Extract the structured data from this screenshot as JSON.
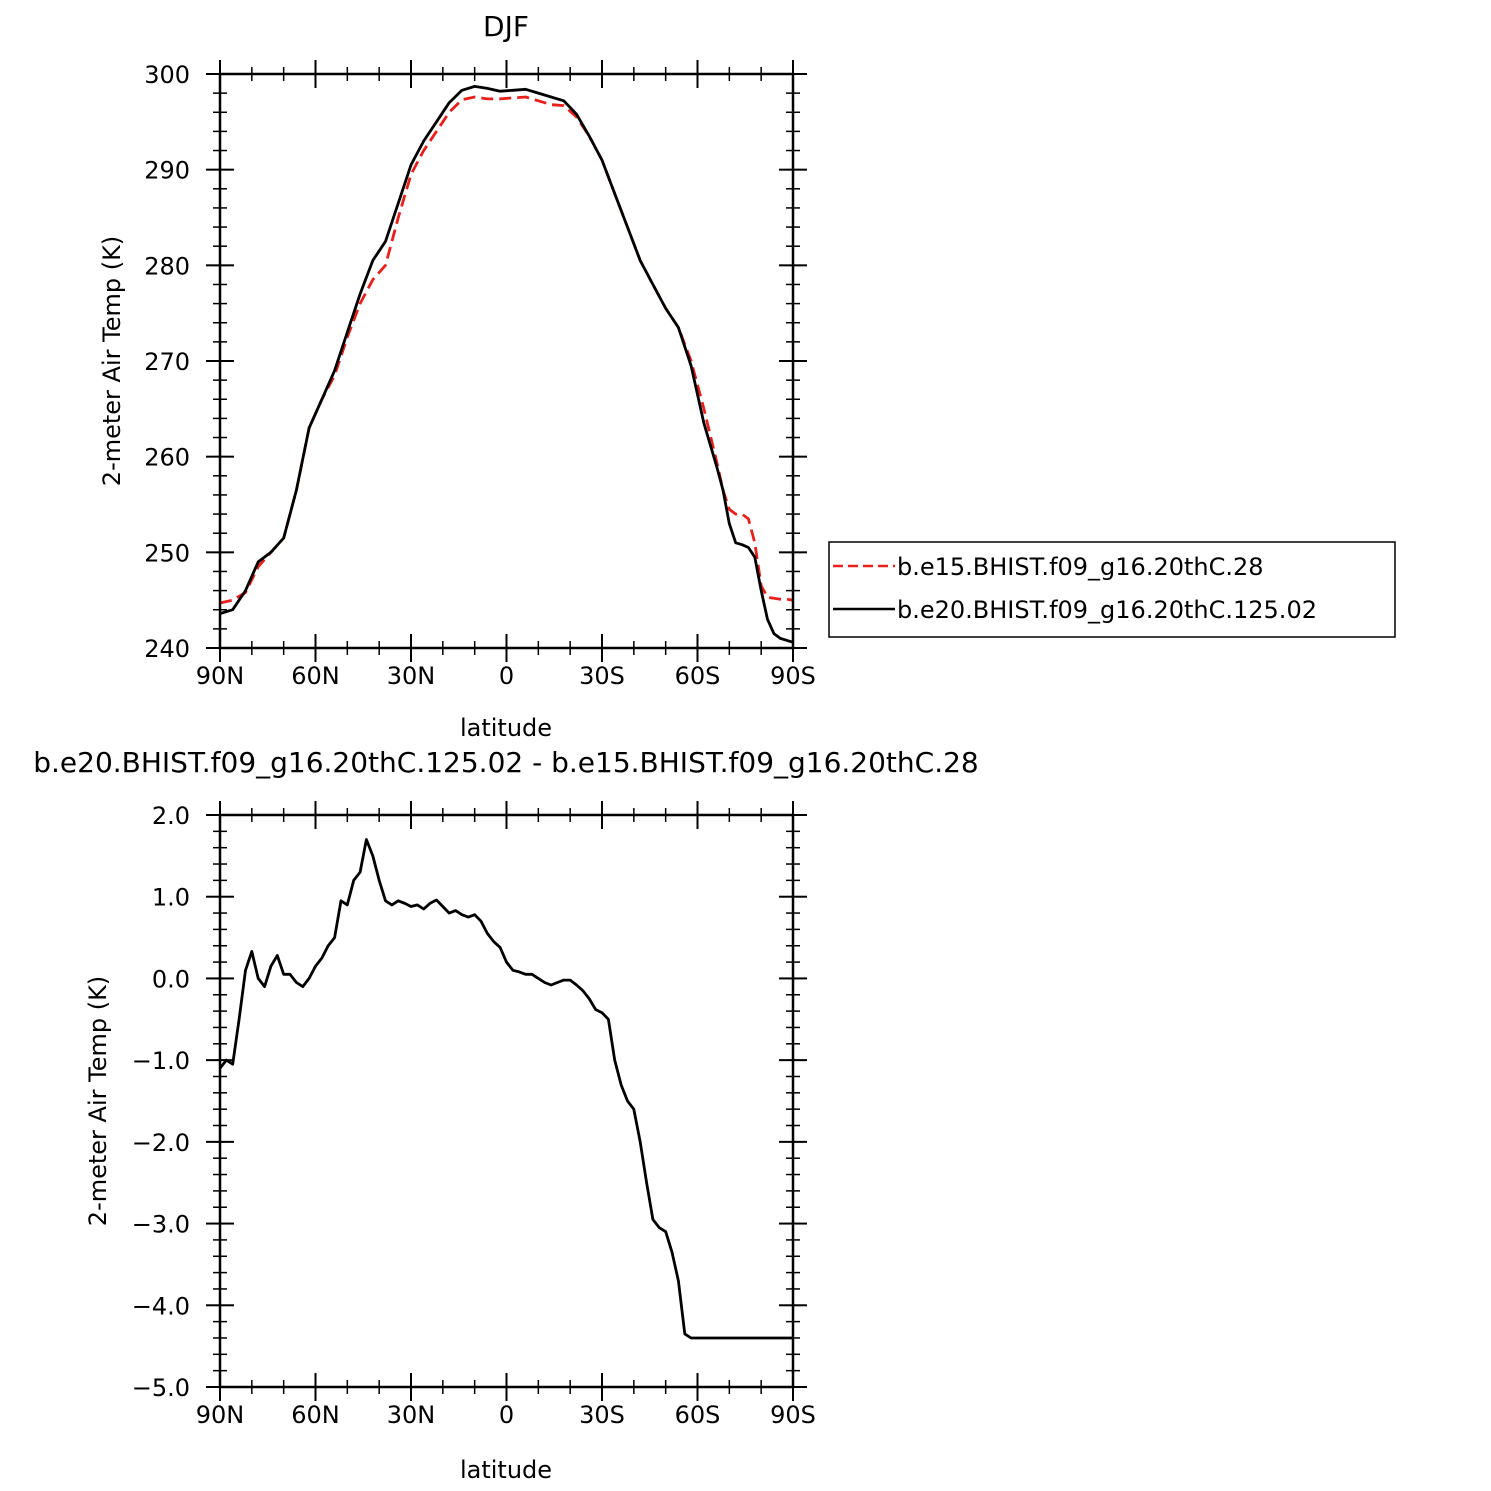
{
  "chart_data": [
    {
      "type": "line",
      "title": "DJF",
      "xlabel": "latitude",
      "ylabel": "2-meter Air Temp (K)",
      "xlim": [
        90,
        -90
      ],
      "ylim": [
        240,
        300
      ],
      "x_ticks": [
        {
          "value": 90,
          "label": "90N"
        },
        {
          "value": 60,
          "label": "60N"
        },
        {
          "value": 30,
          "label": "30N"
        },
        {
          "value": 0,
          "label": "0"
        },
        {
          "value": -30,
          "label": "30S"
        },
        {
          "value": -60,
          "label": "60S"
        },
        {
          "value": -90,
          "label": "90S"
        }
      ],
      "y_ticks": [
        {
          "value": 240,
          "label": "240"
        },
        {
          "value": 250,
          "label": "250"
        },
        {
          "value": 260,
          "label": "260"
        },
        {
          "value": 270,
          "label": "270"
        },
        {
          "value": 280,
          "label": "280"
        },
        {
          "value": 290,
          "label": "290"
        },
        {
          "value": 300,
          "label": "300"
        }
      ],
      "legend_position": "right",
      "series": [
        {
          "name": "b.e15.BHIST.f09_g16.20thC.28",
          "color": "#e8201c",
          "dash": "dashed",
          "x": [
            90,
            86,
            82,
            78,
            74,
            70,
            66,
            62,
            58,
            54,
            50,
            46,
            42,
            38,
            34,
            30,
            26,
            22,
            18,
            14,
            10,
            6,
            2,
            -2,
            -6,
            -10,
            -14,
            -18,
            -22,
            -26,
            -30,
            -34,
            -38,
            -42,
            -46,
            -50,
            -54,
            -58,
            -62,
            -66,
            -68,
            -70,
            -72,
            -74,
            -76,
            -78,
            -80,
            -82,
            -84,
            -86,
            -88,
            -90
          ],
          "y": [
            244.7,
            245.0,
            245.8,
            248.5,
            250.0,
            251.5,
            256.5,
            263.0,
            266.0,
            268.5,
            272.5,
            276.0,
            278.5,
            280.0,
            285.0,
            289.5,
            292.0,
            294.0,
            296.0,
            297.3,
            297.6,
            297.4,
            297.4,
            297.5,
            297.6,
            297.2,
            296.8,
            296.7,
            295.5,
            293.5,
            291.0,
            287.5,
            284.0,
            280.5,
            278.0,
            275.5,
            273.5,
            270.0,
            265.0,
            259.5,
            256.5,
            254.5,
            254.0,
            254.0,
            253.5,
            251.0,
            246.5,
            245.3,
            245.2,
            245.1,
            245.1,
            245.0
          ]
        },
        {
          "name": "b.e20.BHIST.f09_g16.20thC.125.02",
          "color": "#000000",
          "dash": "solid",
          "x": [
            90,
            86,
            82,
            78,
            74,
            70,
            66,
            62,
            58,
            54,
            50,
            46,
            42,
            38,
            34,
            30,
            26,
            22,
            18,
            14,
            10,
            6,
            2,
            -2,
            -6,
            -10,
            -14,
            -18,
            -22,
            -26,
            -30,
            -34,
            -38,
            -42,
            -46,
            -50,
            -54,
            -58,
            -62,
            -66,
            -68,
            -70,
            -72,
            -74,
            -76,
            -78,
            -80,
            -82,
            -84,
            -86,
            -88,
            -90
          ],
          "y": [
            243.6,
            244.0,
            246.0,
            249.0,
            250.0,
            251.5,
            256.5,
            263.0,
            266.0,
            269.0,
            273.0,
            277.0,
            280.5,
            282.5,
            286.5,
            290.5,
            293.0,
            295.0,
            297.0,
            298.3,
            298.7,
            298.5,
            298.2,
            298.3,
            298.4,
            298.0,
            297.6,
            297.2,
            295.8,
            293.5,
            291.0,
            287.5,
            284.0,
            280.5,
            278.0,
            275.5,
            273.5,
            269.5,
            263.5,
            259.0,
            256.5,
            253.0,
            251.0,
            250.8,
            250.5,
            249.5,
            246.0,
            243.0,
            241.5,
            241.0,
            240.8,
            240.6
          ]
        }
      ]
    },
    {
      "type": "line",
      "title": "b.e20.BHIST.f09_g16.20thC.125.02 - b.e15.BHIST.f09_g16.20thC.28",
      "xlabel": "latitude",
      "ylabel": "2-meter Air Temp (K)",
      "xlim": [
        90,
        -90
      ],
      "ylim": [
        -5.0,
        2.0
      ],
      "x_ticks": [
        {
          "value": 90,
          "label": "90N"
        },
        {
          "value": 60,
          "label": "60N"
        },
        {
          "value": 30,
          "label": "30N"
        },
        {
          "value": 0,
          "label": "0"
        },
        {
          "value": -30,
          "label": "30S"
        },
        {
          "value": -60,
          "label": "60S"
        },
        {
          "value": -90,
          "label": "90S"
        }
      ],
      "y_ticks": [
        {
          "value": 2.0,
          "label": "2.0"
        },
        {
          "value": 1.0,
          "label": "1.0"
        },
        {
          "value": 0.0,
          "label": "0.0"
        },
        {
          "value": -1.0,
          "label": "−1.0"
        },
        {
          "value": -2.0,
          "label": "−2.0"
        },
        {
          "value": -3.0,
          "label": "−3.0"
        },
        {
          "value": -4.0,
          "label": "−4.0"
        },
        {
          "value": -5.0,
          "label": "−5.0"
        }
      ],
      "series": [
        {
          "color": "#000000",
          "dash": "solid",
          "x": [
            90,
            88,
            86,
            84,
            82,
            80,
            78,
            76,
            74,
            72,
            70,
            68,
            66,
            64,
            62,
            60,
            58,
            56,
            54,
            52,
            50,
            48,
            46,
            44,
            42,
            40,
            38,
            36,
            34,
            32,
            30,
            28,
            26,
            24,
            22,
            20,
            18,
            16,
            14,
            12,
            10,
            8,
            6,
            4,
            2,
            0,
            -2,
            -4,
            -6,
            -8,
            -10,
            -12,
            -14,
            -16,
            -18,
            -20,
            -22,
            -24,
            -26,
            -28,
            -30,
            -32,
            -34,
            -36,
            -38,
            -40,
            -42,
            -44,
            -46,
            -48,
            -50,
            -52,
            -54,
            -56,
            -58,
            -60,
            -62,
            -64,
            -66,
            -68,
            -70,
            -72,
            -74,
            -76,
            -78,
            -80,
            -82,
            -84,
            -86,
            -88,
            -90
          ],
          "y": [
            -1.1,
            -1.0,
            -1.05,
            -0.5,
            0.1,
            0.33,
            0.0,
            -0.1,
            0.15,
            0.28,
            0.05,
            0.05,
            -0.05,
            -0.1,
            0.0,
            0.15,
            0.25,
            0.4,
            0.5,
            0.95,
            0.9,
            1.2,
            1.3,
            1.7,
            1.5,
            1.2,
            0.95,
            0.9,
            0.95,
            0.92,
            0.88,
            0.9,
            0.85,
            0.92,
            0.96,
            0.88,
            0.8,
            0.83,
            0.78,
            0.75,
            0.78,
            0.7,
            0.55,
            0.45,
            0.38,
            0.2,
            0.1,
            0.08,
            0.05,
            0.05,
            0.0,
            -0.05,
            -0.08,
            -0.05,
            -0.02,
            -0.02,
            -0.08,
            -0.15,
            -0.25,
            -0.38,
            -0.42,
            -0.5,
            -1.0,
            -1.3,
            -1.5,
            -1.6,
            -2.0,
            -2.5,
            -2.95,
            -3.05,
            -3.1,
            -3.35,
            -3.7,
            -4.35,
            -4.4,
            -4.4,
            -4.4,
            -4.4,
            -4.4,
            -4.4,
            -4.4,
            -4.4,
            -4.4,
            -4.4,
            -4.4,
            -4.4,
            -4.4,
            -4.4,
            -4.4,
            -4.4,
            -4.4
          ]
        }
      ]
    }
  ]
}
